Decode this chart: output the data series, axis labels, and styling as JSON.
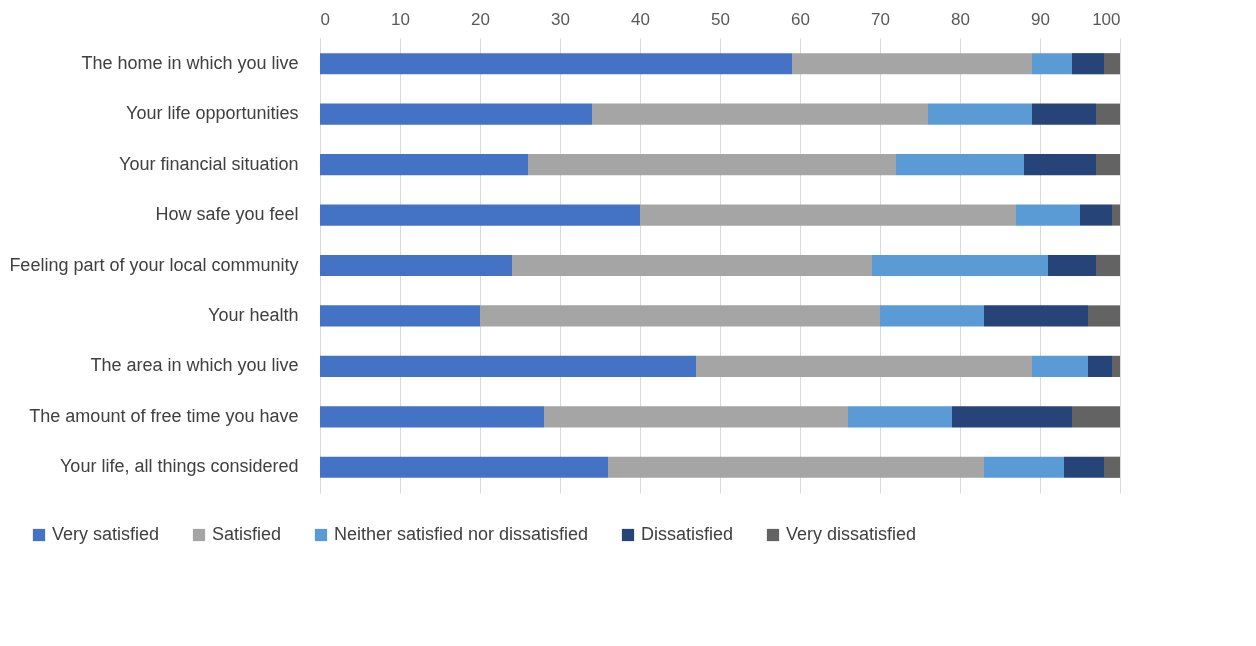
{
  "chart_data": {
    "type": "bar",
    "orientation": "horizontal",
    "stacked": true,
    "categories": [
      "The home in which you live",
      "Your life opportunities",
      "Your financial situation",
      "How safe you feel",
      "Feeling part of your local community",
      "Your health",
      "The area in which you live",
      "The amount of free time you have",
      "Your life, all things considered"
    ],
    "series": [
      {
        "name": "Very satisfied",
        "color": "#4472c4",
        "values": [
          59,
          34,
          26,
          40,
          24,
          20,
          47,
          28,
          36
        ]
      },
      {
        "name": "Satisfied",
        "color": "#a5a5a5",
        "values": [
          30,
          42,
          46,
          47,
          45,
          50,
          42,
          38,
          47
        ]
      },
      {
        "name": "Neither satisfied nor dissatisfied",
        "color": "#5b9bd5",
        "values": [
          5,
          13,
          16,
          8,
          22,
          13,
          7,
          13,
          10
        ]
      },
      {
        "name": "Dissatisfied",
        "color": "#264478",
        "values": [
          4,
          8,
          9,
          4,
          6,
          13,
          3,
          15,
          5
        ]
      },
      {
        "name": "Very dissatisfied",
        "color": "#636363",
        "values": [
          2,
          3,
          3,
          1,
          3,
          4,
          1,
          6,
          2
        ]
      }
    ],
    "xlim": [
      0,
      100
    ],
    "xticks": [
      0,
      10,
      20,
      30,
      40,
      50,
      60,
      70,
      80,
      90,
      100
    ],
    "grid": "x",
    "legend": "bottom"
  }
}
